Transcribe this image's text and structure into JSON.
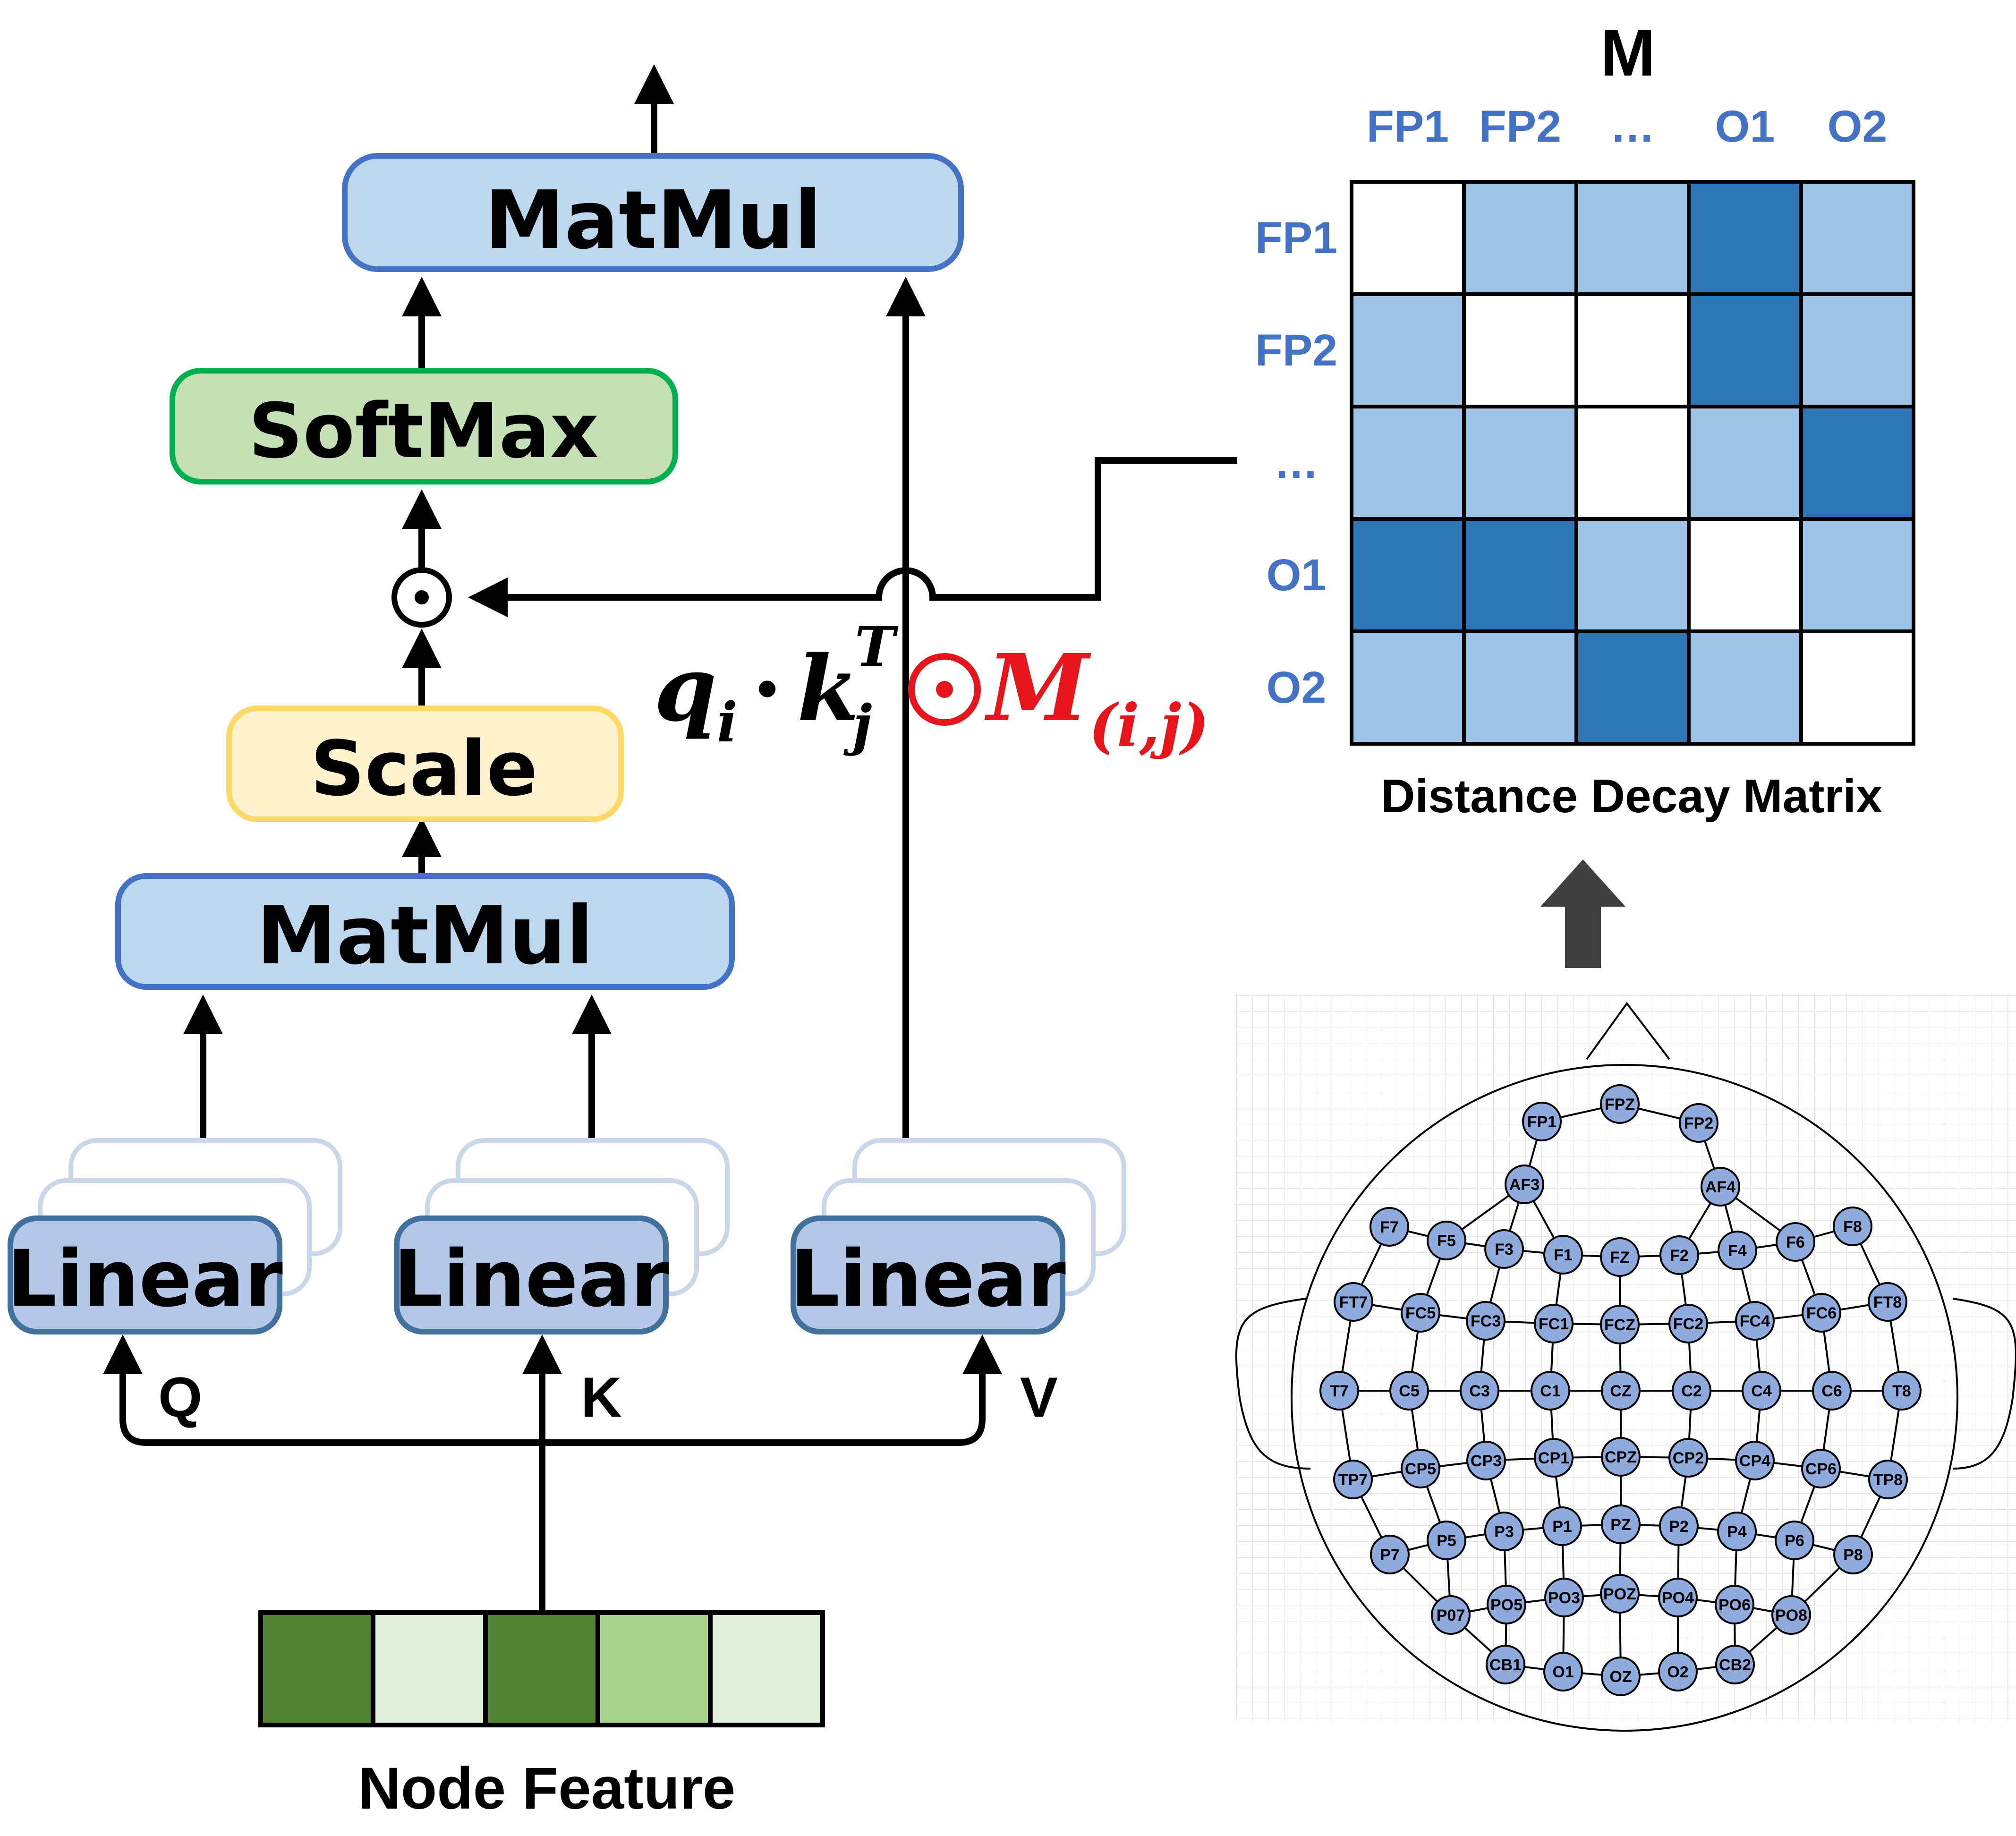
{
  "blocks": {
    "top_matmul": "MatMul",
    "softmax": "SoftMax",
    "scale": "Scale",
    "mid_matmul": "MatMul",
    "linear_q": "Linear",
    "linear_k": "Linear",
    "linear_v": "Linear"
  },
  "inputs": {
    "q": "Q",
    "k": "K",
    "v": "V"
  },
  "node_feature": {
    "label": "Node Feature",
    "cells": [
      "#548235",
      "#E2EFDA",
      "#548235",
      "#A9D18E",
      "#E2EFDA"
    ]
  },
  "hadamard_symbol": "⊙",
  "formula": {
    "q": "q",
    "q_sub": "i",
    "dot": "·",
    "k": "k",
    "k_sup": "T",
    "k_sub": "j",
    "odot": "⊙",
    "m": "M",
    "m_sub": "(i,j)",
    "accent_color": "#E8141B"
  },
  "matrix": {
    "title": "M",
    "caption": "Distance Decay Matrix",
    "col_labels": [
      "FP1",
      "FP2",
      "…",
      "O1",
      "O2"
    ],
    "row_labels": [
      "FP1",
      "FP2",
      "…",
      "O1",
      "O2"
    ],
    "levels": [
      [
        0,
        1,
        1,
        2,
        1
      ],
      [
        1,
        0,
        0,
        2,
        1
      ],
      [
        1,
        1,
        0,
        1,
        2
      ],
      [
        2,
        2,
        1,
        0,
        1
      ],
      [
        1,
        1,
        2,
        1,
        0
      ]
    ],
    "palette": [
      "#FFFFFF",
      "#9DC3E6",
      "#2E75B6"
    ]
  },
  "electrodes": [
    {
      "name": "FPZ"
    },
    {
      "name": "FP1"
    },
    {
      "name": "FP2"
    },
    {
      "name": "AF3"
    },
    {
      "name": "AF4"
    },
    {
      "name": "F7"
    },
    {
      "name": "F5"
    },
    {
      "name": "F3"
    },
    {
      "name": "F1"
    },
    {
      "name": "FZ"
    },
    {
      "name": "F2"
    },
    {
      "name": "F4"
    },
    {
      "name": "F6"
    },
    {
      "name": "F8"
    },
    {
      "name": "FT7"
    },
    {
      "name": "FC5"
    },
    {
      "name": "FC3"
    },
    {
      "name": "FC1"
    },
    {
      "name": "FCZ"
    },
    {
      "name": "FC2"
    },
    {
      "name": "FC4"
    },
    {
      "name": "FC6"
    },
    {
      "name": "FT8"
    },
    {
      "name": "T7"
    },
    {
      "name": "C5"
    },
    {
      "name": "C3"
    },
    {
      "name": "C1"
    },
    {
      "name": "CZ"
    },
    {
      "name": "C2"
    },
    {
      "name": "C4"
    },
    {
      "name": "C6"
    },
    {
      "name": "T8"
    },
    {
      "name": "TP7"
    },
    {
      "name": "CP5"
    },
    {
      "name": "CP3"
    },
    {
      "name": "CP1"
    },
    {
      "name": "CPZ"
    },
    {
      "name": "CP2"
    },
    {
      "name": "CP4"
    },
    {
      "name": "CP6"
    },
    {
      "name": "TP8"
    },
    {
      "name": "P7"
    },
    {
      "name": "P5"
    },
    {
      "name": "P3"
    },
    {
      "name": "P1"
    },
    {
      "name": "PZ"
    },
    {
      "name": "P2"
    },
    {
      "name": "P4"
    },
    {
      "name": "P6"
    },
    {
      "name": "P8"
    },
    {
      "name": "P07"
    },
    {
      "name": "PO5"
    },
    {
      "name": "PO3"
    },
    {
      "name": "POZ"
    },
    {
      "name": "PO4"
    },
    {
      "name": "PO6"
    },
    {
      "name": "PO8"
    },
    {
      "name": "CB1"
    },
    {
      "name": "O1"
    },
    {
      "name": "OZ"
    },
    {
      "name": "O2"
    },
    {
      "name": "CB2"
    }
  ],
  "colors": {
    "matmul_fill": "#BDD7EE",
    "matmul_stroke": "#4472C4",
    "softmax_fill": "#C5E0B4",
    "softmax_stroke": "#00B050",
    "scale_fill": "#FFF2CC",
    "scale_stroke": "#FFD966",
    "linear_fill": "#B4C7E7",
    "linear_stroke": "#41719C",
    "electrode_fill": "#8FAADC",
    "grid": "#E7E6E6"
  }
}
